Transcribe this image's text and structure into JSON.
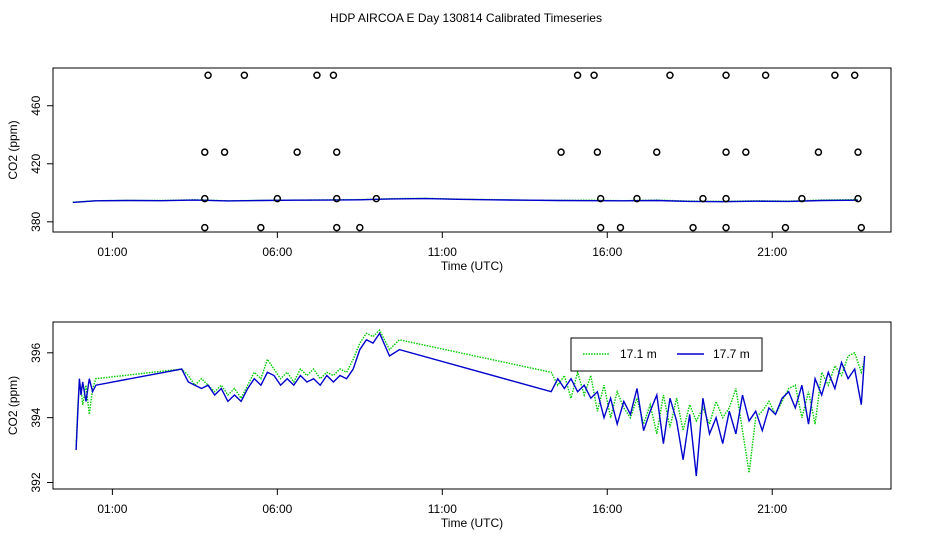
{
  "title": "HDP AIRCOA E  Day 130814  Calibrated Timeseries",
  "colors": {
    "green": "#00cc00",
    "blue": "#0000cc",
    "axis": "#000000"
  },
  "chart_data": [
    {
      "type": "scatter",
      "xlabel": "Time (UTC)",
      "ylabel": "CO2 (ppm)",
      "xlim": [
        -0.8,
        24.6
      ],
      "ylim": [
        373,
        486
      ],
      "xticks": [
        1,
        6,
        11,
        16,
        21
      ],
      "xtick_labels": [
        "01:00",
        "06:00",
        "11:00",
        "16:00",
        "21:00"
      ],
      "yticks": [
        380,
        420,
        460
      ],
      "ytick_labels": [
        "380",
        "420",
        "460"
      ],
      "series": [
        {
          "color": "green",
          "kind": "line",
          "x": [
            -0.2,
            0.5,
            1.5,
            2.5,
            3.5,
            4.5,
            5.5,
            6.5,
            7.5,
            8.5,
            9.5,
            10.5,
            11.5,
            12.5,
            13.5,
            14.5,
            15.5,
            16.5,
            17.5,
            18.5,
            19.5,
            20.5,
            21.5,
            22.5,
            23.6
          ],
          "y": [
            393.5,
            394.6,
            394.8,
            394.7,
            395.2,
            394.5,
            394.8,
            395.0,
            395.1,
            395.3,
            396.0,
            396.2,
            395.6,
            395.3,
            395.0,
            394.8,
            394.9,
            394.6,
            395.0,
            394.3,
            394.1,
            394.5,
            394.3,
            395.0,
            395.3
          ]
        },
        {
          "color": "blue",
          "kind": "line",
          "x": [
            -0.2,
            0.5,
            1.5,
            2.5,
            3.5,
            4.5,
            5.5,
            6.5,
            7.5,
            8.5,
            9.5,
            10.5,
            11.5,
            12.5,
            13.5,
            14.5,
            15.5,
            16.5,
            17.5,
            18.5,
            19.5,
            20.5,
            21.5,
            22.5,
            23.6
          ],
          "y": [
            393.4,
            394.5,
            394.7,
            394.6,
            395.0,
            394.4,
            394.7,
            394.9,
            395.0,
            395.2,
            395.8,
            396.0,
            395.5,
            395.2,
            394.9,
            394.7,
            394.6,
            394.5,
            394.7,
            394.1,
            393.9,
            394.2,
            394.1,
            394.7,
            394.9
          ]
        },
        {
          "color": "black",
          "kind": "points",
          "x": [
            3.9,
            5.0,
            7.2,
            7.7,
            15.1,
            15.6,
            17.9,
            19.6,
            20.8,
            22.9,
            23.5,
            3.8,
            4.4,
            6.6,
            7.8,
            14.6,
            15.7,
            17.5,
            19.6,
            20.2,
            22.4,
            23.6,
            3.8,
            6.0,
            7.8,
            9.0,
            15.8,
            16.9,
            18.9,
            19.6,
            21.9,
            23.6,
            3.8,
            5.5,
            7.8,
            8.5,
            15.8,
            16.4,
            18.6,
            19.6,
            21.4,
            23.7
          ],
          "y": [
            481,
            481,
            481,
            481,
            481,
            481,
            481,
            481,
            481,
            481,
            481,
            428,
            428,
            428,
            428,
            428,
            428,
            428,
            428,
            428,
            428,
            428,
            396,
            396,
            396,
            396,
            396,
            396,
            396,
            396,
            396,
            396,
            376,
            376,
            376,
            376,
            376,
            376,
            376,
            376,
            376,
            376
          ]
        }
      ]
    },
    {
      "type": "line",
      "xlabel": "Time (UTC)",
      "ylabel": "CO2 (ppm)",
      "xlim": [
        -0.8,
        24.6
      ],
      "ylim": [
        391.8,
        396.95
      ],
      "xticks": [
        1,
        6,
        11,
        16,
        21
      ],
      "xtick_labels": [
        "01:00",
        "06:00",
        "11:00",
        "16:00",
        "21:00"
      ],
      "yticks": [
        392,
        394,
        396
      ],
      "ytick_labels": [
        "392",
        "394",
        "396"
      ],
      "legend": "top-right",
      "series": [
        {
          "name": "17.1 m",
          "color": "green",
          "x": [
            -0.1,
            -0.05,
            0.0,
            0.05,
            0.1,
            0.2,
            0.3,
            0.4,
            0.5,
            3.1,
            3.3,
            3.5,
            3.7,
            3.9,
            4.1,
            4.3,
            4.5,
            4.7,
            4.9,
            5.1,
            5.3,
            5.5,
            5.7,
            5.9,
            6.1,
            6.3,
            6.5,
            6.7,
            6.9,
            7.1,
            7.3,
            7.5,
            7.7,
            7.9,
            8.1,
            8.3,
            8.5,
            8.7,
            8.9,
            9.1,
            9.4,
            9.7,
            14.3,
            14.5,
            14.7,
            14.9,
            15.1,
            15.3,
            15.5,
            15.7,
            15.9,
            16.1,
            16.3,
            16.5,
            16.7,
            16.9,
            17.1,
            17.3,
            17.5,
            17.7,
            17.9,
            18.1,
            18.3,
            18.5,
            18.7,
            18.9,
            19.1,
            19.3,
            19.5,
            19.7,
            19.9,
            20.1,
            20.3,
            20.5,
            20.7,
            20.9,
            21.1,
            21.3,
            21.5,
            21.7,
            21.9,
            22.1,
            22.3,
            22.5,
            22.7,
            22.9,
            23.1,
            23.3,
            23.5,
            23.7,
            23.8
          ],
          "y": [
            393.1,
            394.3,
            395.1,
            394.9,
            394.4,
            395.0,
            394.1,
            394.9,
            395.2,
            395.5,
            395.3,
            395.0,
            395.2,
            395.0,
            394.8,
            395.0,
            394.7,
            394.9,
            394.6,
            395.0,
            395.4,
            395.2,
            395.8,
            395.5,
            395.2,
            395.4,
            395.1,
            395.5,
            395.3,
            395.5,
            395.2,
            395.4,
            395.3,
            395.5,
            395.4,
            395.8,
            396.3,
            396.6,
            396.5,
            396.7,
            396.1,
            396.4,
            395.4,
            395.0,
            395.3,
            394.6,
            395.4,
            394.7,
            395.3,
            394.2,
            395.0,
            394.0,
            394.8,
            394.3,
            394.0,
            394.6,
            393.8,
            394.4,
            393.5,
            394.7,
            393.7,
            394.6,
            393.6,
            394.4,
            393.9,
            394.3,
            393.8,
            394.5,
            394.0,
            394.3,
            394.9,
            393.6,
            392.3,
            394.0,
            394.2,
            394.5,
            394.1,
            394.5,
            394.9,
            395.0,
            394.0,
            394.8,
            393.8,
            395.4,
            395.0,
            395.6,
            395.3,
            395.9,
            396.0,
            395.4,
            395.8
          ]
        },
        {
          "name": "17.7 m",
          "color": "blue",
          "x": [
            -0.1,
            -0.05,
            0.0,
            0.05,
            0.1,
            0.2,
            0.3,
            0.4,
            0.5,
            3.1,
            3.3,
            3.5,
            3.7,
            3.9,
            4.1,
            4.3,
            4.5,
            4.7,
            4.9,
            5.1,
            5.3,
            5.5,
            5.7,
            5.9,
            6.1,
            6.3,
            6.5,
            6.7,
            6.9,
            7.1,
            7.3,
            7.5,
            7.7,
            7.9,
            8.1,
            8.3,
            8.5,
            8.7,
            8.9,
            9.1,
            9.4,
            9.7,
            14.3,
            14.5,
            14.7,
            14.9,
            15.1,
            15.3,
            15.5,
            15.7,
            15.9,
            16.1,
            16.3,
            16.5,
            16.7,
            16.9,
            17.1,
            17.3,
            17.5,
            17.7,
            17.9,
            18.1,
            18.3,
            18.5,
            18.7,
            18.9,
            19.1,
            19.3,
            19.5,
            19.7,
            19.9,
            20.1,
            20.3,
            20.5,
            20.7,
            20.9,
            21.1,
            21.3,
            21.5,
            21.7,
            21.9,
            22.1,
            22.3,
            22.5,
            22.7,
            22.9,
            23.1,
            23.3,
            23.5,
            23.7,
            23.8
          ],
          "y": [
            393.0,
            394.1,
            395.2,
            394.7,
            395.1,
            394.5,
            395.2,
            394.8,
            395.0,
            395.5,
            395.1,
            395.0,
            394.9,
            395.0,
            394.7,
            394.9,
            394.5,
            394.7,
            394.5,
            394.9,
            395.2,
            395.0,
            395.4,
            395.3,
            395.0,
            395.2,
            395.0,
            395.3,
            395.1,
            395.2,
            395.0,
            395.3,
            395.1,
            395.3,
            395.2,
            395.5,
            396.1,
            396.4,
            396.3,
            396.6,
            395.9,
            396.1,
            394.8,
            395.2,
            394.9,
            395.2,
            394.8,
            395.0,
            394.6,
            394.8,
            394.0,
            394.6,
            393.8,
            394.5,
            394.1,
            394.9,
            393.6,
            394.2,
            394.7,
            393.2,
            394.6,
            393.9,
            392.7,
            394.1,
            392.2,
            394.6,
            393.5,
            394.0,
            393.2,
            394.2,
            393.5,
            394.7,
            393.9,
            394.2,
            393.6,
            394.3,
            394.1,
            394.6,
            394.8,
            394.3,
            395.0,
            393.8,
            395.2,
            394.7,
            395.4,
            394.9,
            395.7,
            395.2,
            395.5,
            394.4,
            395.9
          ]
        }
      ]
    }
  ]
}
